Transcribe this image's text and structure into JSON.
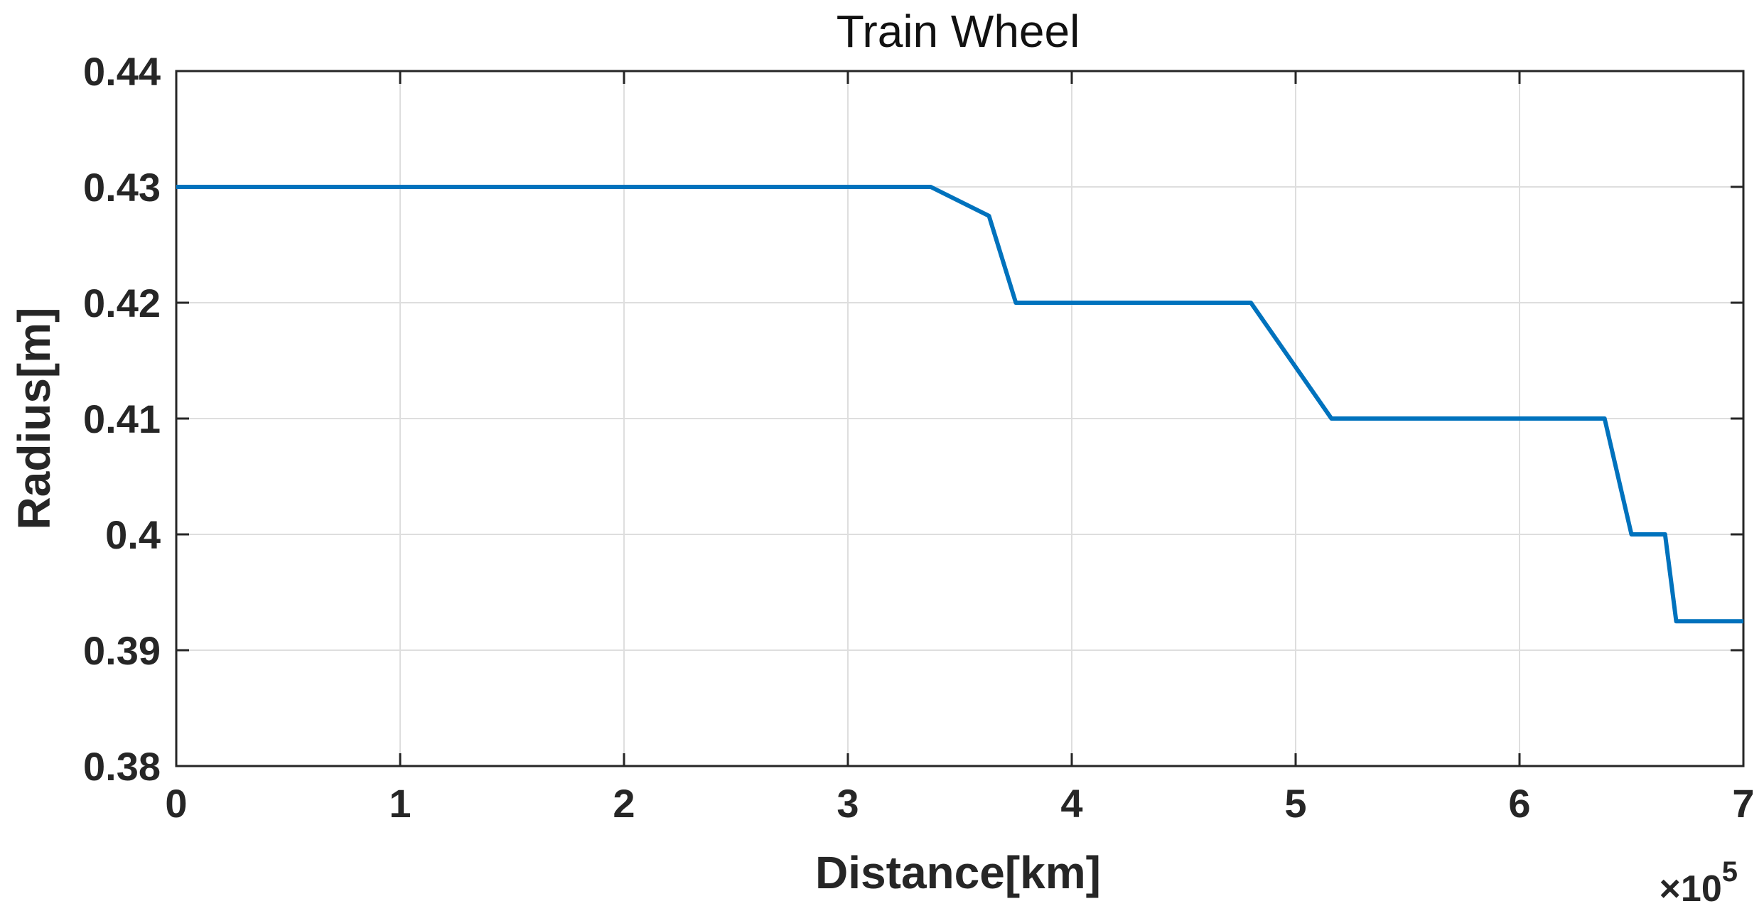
{
  "chart_data": {
    "type": "line",
    "title": "Train Wheel",
    "xlabel": "Distance[km]",
    "ylabel": "Radius[m]",
    "x_multiplier": {
      "prefix": "×10",
      "exponent": "5"
    },
    "xlim": [
      0,
      7
    ],
    "ylim": [
      0.38,
      0.44
    ],
    "xticks": [
      "0",
      "1",
      "2",
      "3",
      "4",
      "5",
      "6",
      "7"
    ],
    "yticks": [
      "0.38",
      "0.39",
      "0.4",
      "0.41",
      "0.42",
      "0.43",
      "0.44"
    ],
    "grid": true,
    "line_color": "#0072BD",
    "series": [
      {
        "x": [
          0,
          3.37,
          3.63,
          3.75,
          4.8,
          5.16,
          6.38,
          6.5,
          6.65,
          6.7,
          7.0
        ],
        "y": [
          0.43,
          0.43,
          0.4275,
          0.42,
          0.42,
          0.41,
          0.41,
          0.4,
          0.4,
          0.3925,
          0.3925
        ]
      }
    ]
  }
}
